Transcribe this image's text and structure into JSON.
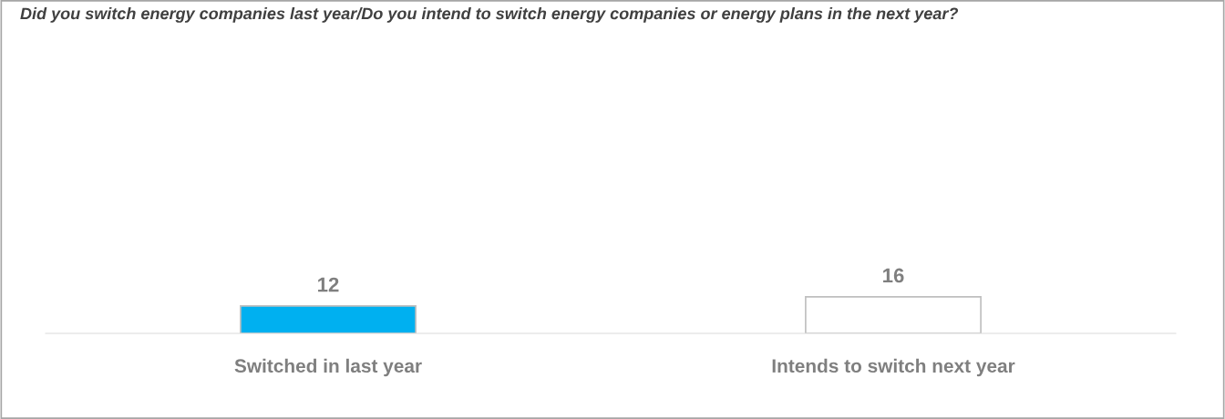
{
  "chart_data": {
    "type": "bar",
    "title": "Did you switch energy companies last year/Do you intend to switch energy companies or energy plans in the next year?",
    "categories": [
      "Switched in last year",
      "Intends to switch next year"
    ],
    "values": [
      12,
      16
    ],
    "colors": [
      "#00b0f0",
      "#ffffff"
    ],
    "data_labels": true,
    "grid": false,
    "legend": false
  }
}
